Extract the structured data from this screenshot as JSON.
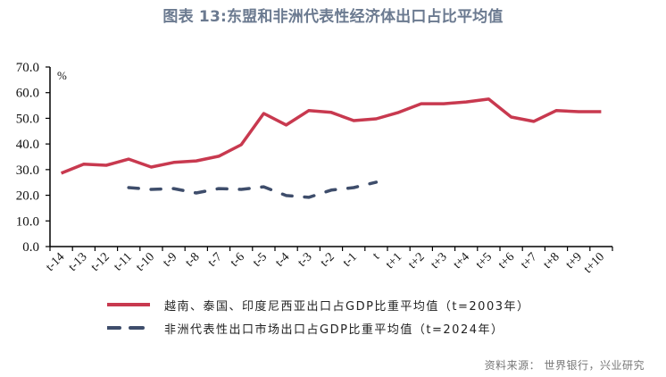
{
  "title": "图表 13:东盟和非洲代表性经济体出口占比平均值",
  "source": "资料来源：  世界银行，兴业研究",
  "colors": {
    "series1": "#c8394f",
    "series2": "#3e4d6b",
    "title": "#6b7a90"
  },
  "legend": {
    "items": [
      {
        "label": "越南、泰国、印度尼西亚出口占GDP比重平均值（t=2003年）",
        "style": "solid"
      },
      {
        "label": "非洲代表性出口市场出口占GDP比重平均值（t=2024年）",
        "style": "dashed"
      }
    ]
  },
  "chart_data": {
    "type": "line",
    "title": "图表 13:东盟和非洲代表性经济体出口占比平均值",
    "xlabel": "",
    "ylabel": "%",
    "ylim": [
      0,
      70
    ],
    "yticks": [
      "0.0",
      "10.0",
      "20.0",
      "30.0",
      "40.0",
      "50.0",
      "60.0",
      "70.0"
    ],
    "grid": false,
    "legend_position": "bottom",
    "categories": [
      "t-14",
      "t-13",
      "t-12",
      "t-11",
      "t-10",
      "t-9",
      "t-8",
      "t-7",
      "t-6",
      "t-5",
      "t-4",
      "t-3",
      "t-2",
      "t-1",
      "t",
      "t+1",
      "t+2",
      "t+3",
      "t+4",
      "t+5",
      "t+6",
      "t+7",
      "t+8",
      "t+9",
      "t+10"
    ],
    "series": [
      {
        "name": "越南、泰国、印度尼西亚出口占GDP比重平均值（t=2003年）",
        "style": "solid",
        "values": [
          28.6,
          32.1,
          31.7,
          34.1,
          31.0,
          32.8,
          33.4,
          35.2,
          39.7,
          51.9,
          47.4,
          53.0,
          52.3,
          49.1,
          49.8,
          52.3,
          55.7,
          55.7,
          56.4,
          57.5,
          50.5,
          48.8,
          53.0,
          52.6,
          52.6
        ]
      },
      {
        "name": "非洲代表性出口市场出口占GDP比重平均值（t=2024年）",
        "style": "dashed",
        "values": [
          null,
          null,
          null,
          23.0,
          22.3,
          22.6,
          20.9,
          22.6,
          22.3,
          23.3,
          19.9,
          19.2,
          22.0,
          23.0,
          25.1,
          null,
          null,
          null,
          null,
          null,
          null,
          null,
          null,
          null,
          null
        ]
      }
    ]
  }
}
